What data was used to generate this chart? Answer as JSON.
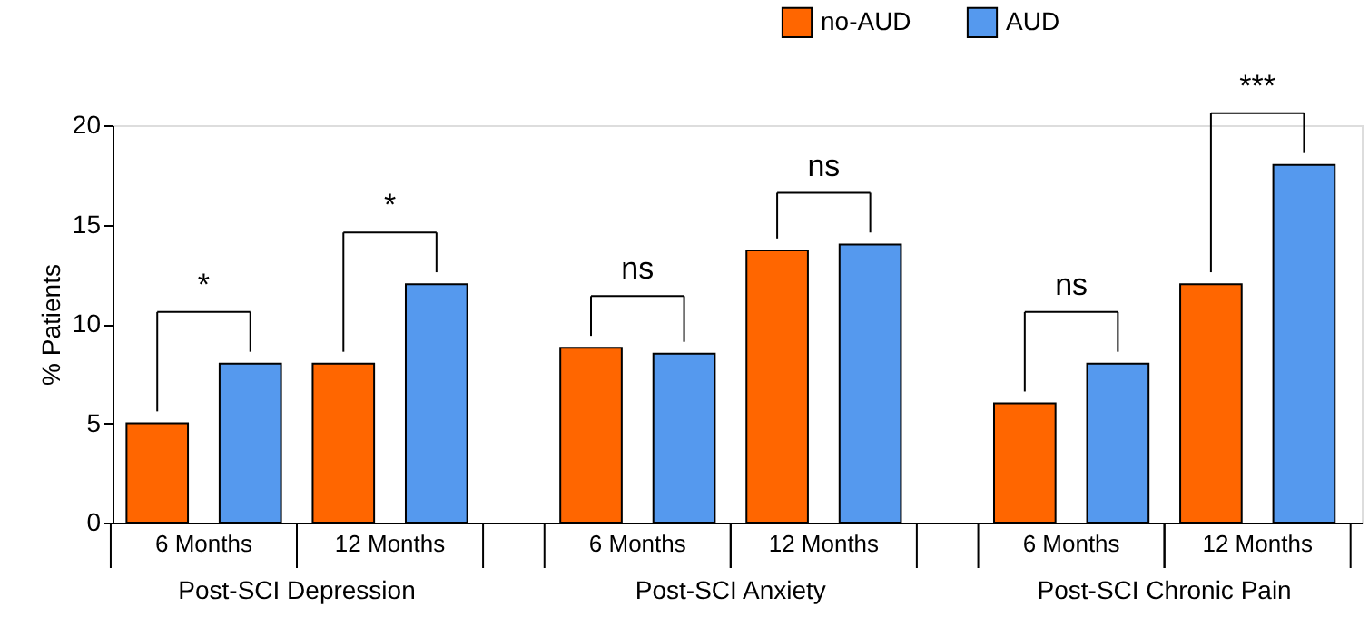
{
  "chart_data": {
    "type": "bar",
    "ylabel": "% Patients",
    "categories": [
      "6 Months",
      "12 Months",
      "6 Months",
      "12 Months",
      "6 Months",
      "12 Months"
    ],
    "series": [
      {
        "name": "no-AUD",
        "color": "#ff6600",
        "values": [
          5,
          8,
          8.8,
          13.7,
          6,
          12
        ]
      },
      {
        "name": "AUD",
        "color": "#5599ee",
        "values": [
          8,
          12,
          8.5,
          14,
          8,
          18
        ]
      }
    ],
    "ylim": [
      0,
      20
    ],
    "yticks": [
      0,
      5,
      10,
      15,
      20
    ],
    "grid": false,
    "legend": "top right",
    "annotations": [
      "*",
      "*",
      "ns",
      "ns",
      "ns",
      "***",
      "Post-SCI Depression",
      "Post-SCI Anxiety",
      "Post-SCI Chronic Pain"
    ]
  }
}
